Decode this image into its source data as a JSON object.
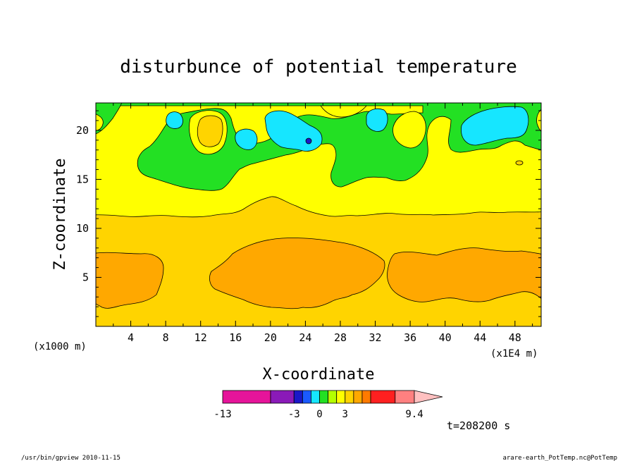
{
  "chart_data": {
    "type": "heatmap",
    "title": "disturbunce of potential temperature",
    "xlabel": "X-coordinate",
    "ylabel": "Z-coordinate",
    "x_unit_left": "(x1000 m)",
    "x_unit_right": "(x1E4 m)",
    "xlim": [
      0,
      51
    ],
    "ylim": [
      0,
      22.8
    ],
    "x_ticks": [
      "4",
      "8",
      "12",
      "16",
      "20",
      "24",
      "28",
      "32",
      "36",
      "40",
      "44",
      "48"
    ],
    "x_tick_values": [
      4,
      8,
      12,
      16,
      20,
      24,
      28,
      32,
      36,
      40,
      44,
      48
    ],
    "y_ticks": [
      "5",
      "10",
      "15",
      "20"
    ],
    "y_tick_values": [
      5,
      10,
      15,
      20
    ],
    "time_label": "t=208200 s",
    "colorbar": {
      "labels": [
        {
          "text": "-13",
          "value": -13
        },
        {
          "text": "-3",
          "value": -3
        },
        {
          "text": "0",
          "value": 0
        },
        {
          "text": "3",
          "value": 3
        },
        {
          "text": "9.4",
          "value": 9.4
        }
      ],
      "colors": [
        "#e6149a",
        "#8a1ab8",
        "#1a18c8",
        "#1a5aff",
        "#16e6ff",
        "#23e023",
        "#b4ff00",
        "#ffff00",
        "#ffd400",
        "#ffa800",
        "#ff7a00",
        "#ff2020",
        "#ff8080",
        "#ffc0c0"
      ],
      "weights": [
        4.5,
        2.2,
        0.8,
        0.8,
        0.8,
        0.8,
        0.8,
        0.8,
        0.8,
        0.8,
        0.8,
        2.3,
        1.8
      ]
    },
    "layers": [
      {
        "name": "band-orange-low",
        "color": "#ffa800"
      },
      {
        "name": "band-gold",
        "color": "#ffd400"
      },
      {
        "name": "band-yellow",
        "color": "#ffff00"
      },
      {
        "name": "band-green",
        "color": "#23e023"
      },
      {
        "name": "band-cyan",
        "color": "#16e6ff"
      },
      {
        "name": "band-blue",
        "color": "#1a18c8"
      }
    ]
  },
  "footer": {
    "left": "/usr/bin/gpview  2010-11-15",
    "right": "arare-earth_PotTemp.nc@PotTemp"
  }
}
